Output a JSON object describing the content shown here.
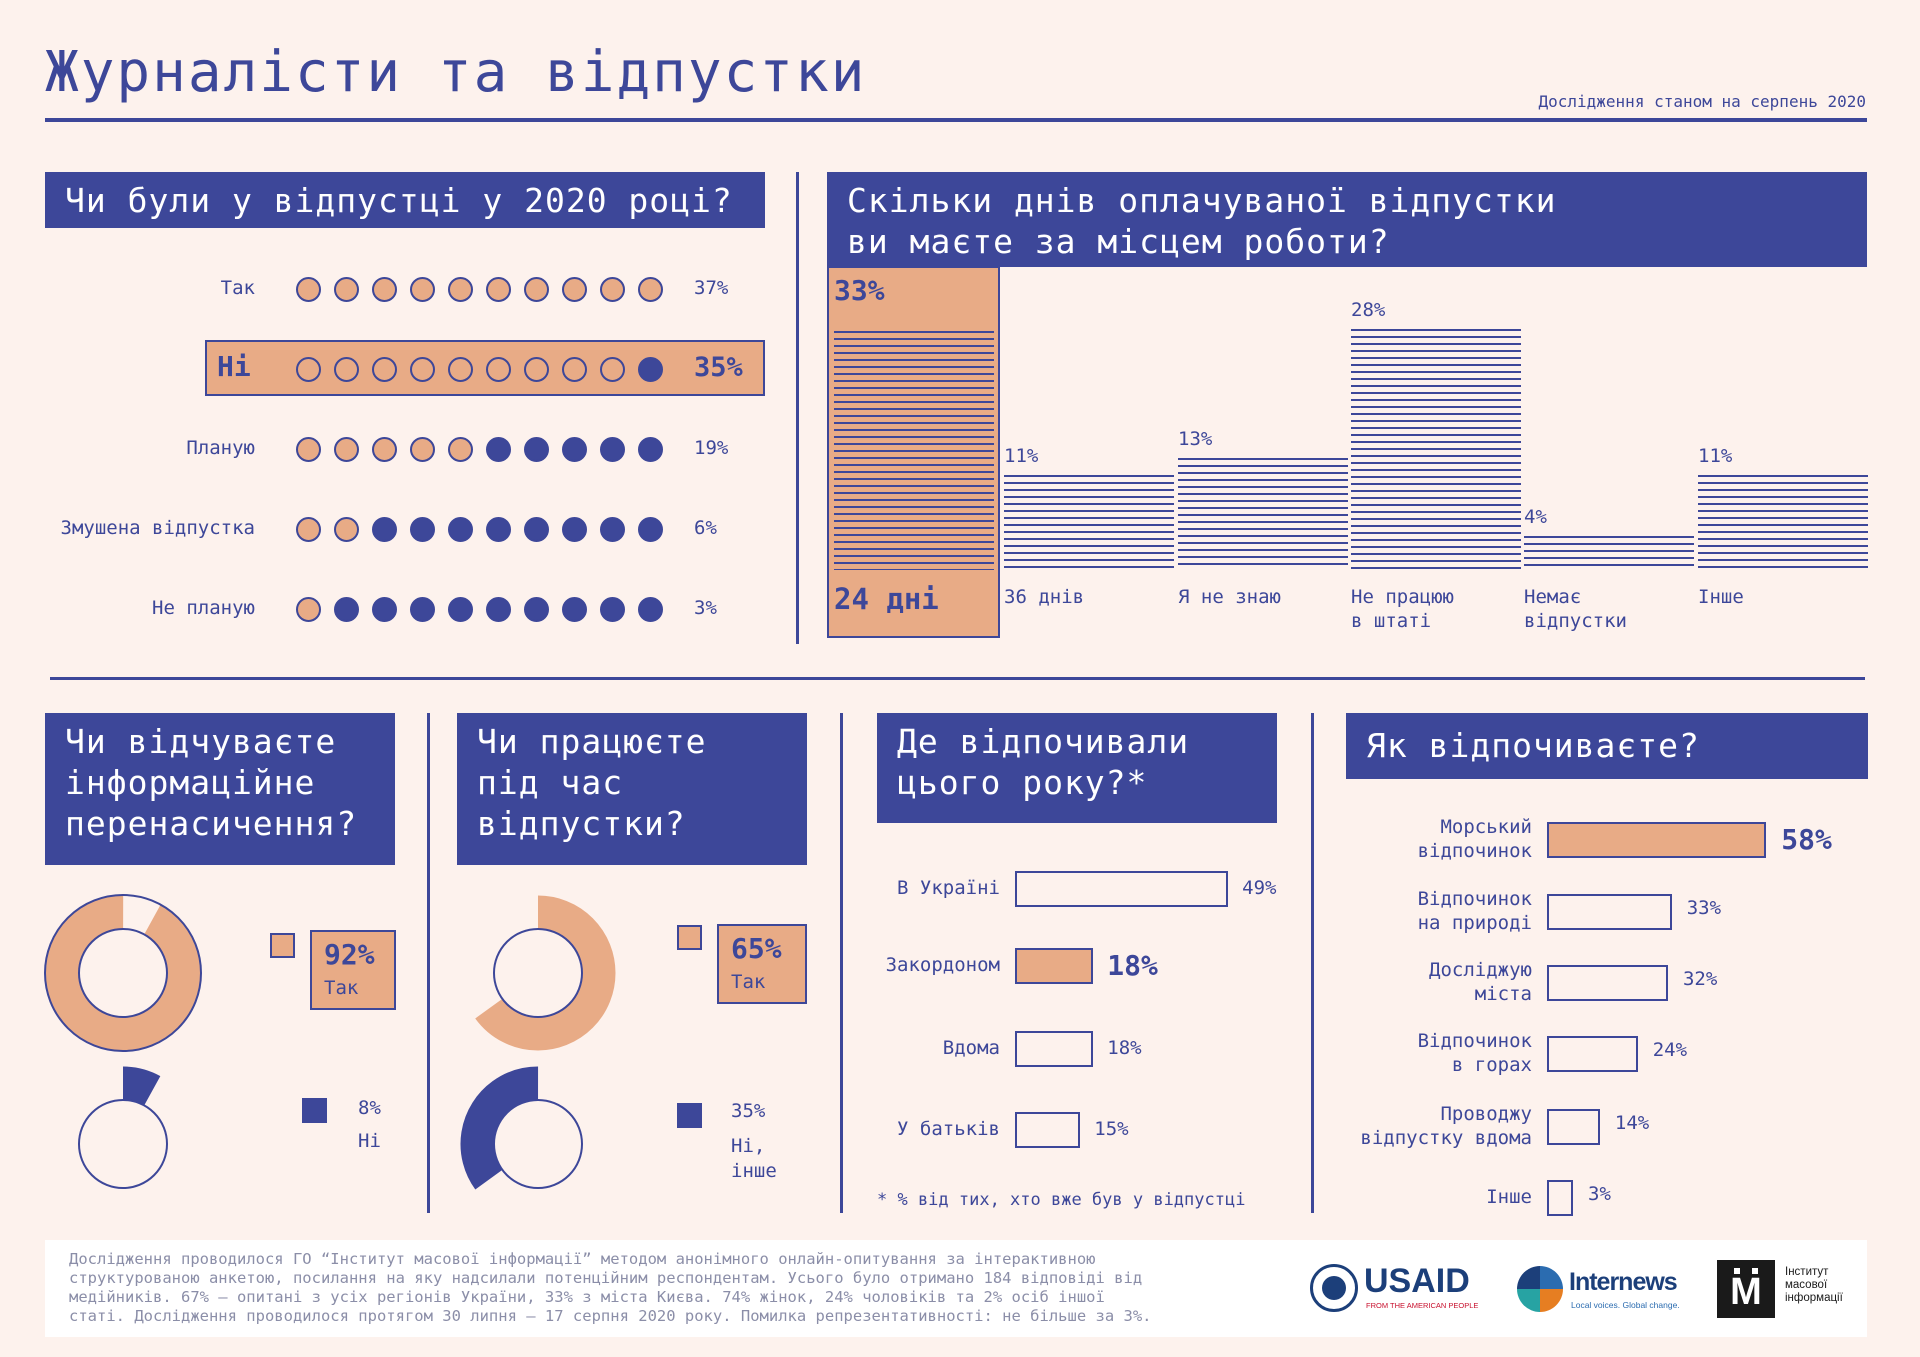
{
  "title": "Журналісти та відпустки",
  "subtitle": "Дослідження станом на серпень 2020",
  "q1": {
    "title": "Чи були у відпустці у 2020 році?",
    "rows": [
      {
        "label": "Так",
        "value": "37%",
        "filled": 0,
        "salmon": 10
      },
      {
        "label": "Ні",
        "value": "35%",
        "filled": 1,
        "salmon": 0,
        "highlight": true
      },
      {
        "label": "Планую",
        "value": "19%",
        "filled": 5,
        "salmon": 5
      },
      {
        "label": "Змушена відпустка",
        "value": "6%",
        "filled": 8,
        "salmon": 2
      },
      {
        "label": "Не планую",
        "value": "3%",
        "filled": 9,
        "salmon": 1
      }
    ]
  },
  "q2": {
    "title_line1": "Скільки днів оплачуваної відпустки",
    "title_line2": "ви маєте за місцем роботи?",
    "bars": [
      {
        "value": 33,
        "label": "33%",
        "category": "24 дні",
        "category2": ""
      },
      {
        "value": 11,
        "label": "11%",
        "category": "36 днів",
        "category2": ""
      },
      {
        "value": 13,
        "label": "13%",
        "category": "Я не знаю",
        "category2": ""
      },
      {
        "value": 28,
        "label": "28%",
        "category": "Не працюю",
        "category2": "в штаті"
      },
      {
        "value": 4,
        "label": "4%",
        "category": "Немає",
        "category2": "відпустки"
      },
      {
        "value": 11,
        "label": "11%",
        "category": "Інше",
        "category2": ""
      }
    ]
  },
  "q3": {
    "title_line1": "Чи відчуваєте",
    "title_line2": "інформаційне",
    "title_line3": "перенасичення?",
    "yes_pct": "92%",
    "yes_label": "Так",
    "no_pct": "8%",
    "no_label": "Ні",
    "yes_value": 92,
    "no_value": 8
  },
  "q4": {
    "title_line1": "Чи працюєте",
    "title_line2": "під час",
    "title_line3": "відпустки?",
    "yes_pct": "65%",
    "yes_label": "Так",
    "no_pct": "35%",
    "no_label1": "Ні,",
    "no_label2": "інше",
    "yes_value": 65,
    "no_value": 35
  },
  "q5": {
    "title_line1": "Де відпочивали",
    "title_line2": "цього року?*",
    "rows": [
      {
        "label": "В Україні",
        "value": 49,
        "pct": "49%"
      },
      {
        "label": "Закордоном",
        "value": 18,
        "pct": "18%",
        "highlight": true
      },
      {
        "label": "Вдома",
        "value": 18,
        "pct": "18%"
      },
      {
        "label": "У батьків",
        "value": 15,
        "pct": "15%"
      }
    ],
    "footnote": "* % від тих, хто вже був у відпустці"
  },
  "q6": {
    "title": "Як відпочиваєте?",
    "rows": [
      {
        "label1": "Морський",
        "label2": "відпочинок",
        "value": 58,
        "pct": "58%",
        "highlight": true
      },
      {
        "label1": "Відпочинок",
        "label2": "на природі",
        "value": 33,
        "pct": "33%"
      },
      {
        "label1": "Досліджую",
        "label2": "міста",
        "value": 32,
        "pct": "32%"
      },
      {
        "label1": "Відпочинок",
        "label2": "в горах",
        "value": 24,
        "pct": "24%"
      },
      {
        "label1": "Проводжу",
        "label2": "відпустку вдома",
        "value": 14,
        "pct": "14%"
      },
      {
        "label1": "Інше",
        "label2": "",
        "value": 3,
        "pct": "3%"
      }
    ]
  },
  "footer": {
    "line1": "Дослідження проводилося ГО “Інститут масової інформації” методом анонімного онлайн-опитування за інтерактивною",
    "line2": "структурованою анкетою, посилання на яку надсилали потенційним респондентам. Усього було отримано 184 відповіді від",
    "line3": "медійників. 67% – опитані з усіх регіонів України, 33% з міста Києва. 74% жінок, 24% чоловіків та 2% осіб іншої",
    "line4": "статі. Дослідження проводилося протягом 30 липня – 17 серпня 2020 року. Помилка репрезентативності: не більше за 3%."
  },
  "logos": {
    "usaid": "USAID",
    "usaid_sub": "FROM THE AMERICAN PEOPLE",
    "internews": "Internews",
    "internews_sub": "Local voices. Global change.",
    "imi_mark": "М",
    "imi_line1": "Інститут",
    "imi_line2": "масової",
    "imi_line3": "інформації"
  },
  "colors": {
    "navy": "#3d4799",
    "salmon": "#e8ab86",
    "background": "#fdf2ed"
  }
}
